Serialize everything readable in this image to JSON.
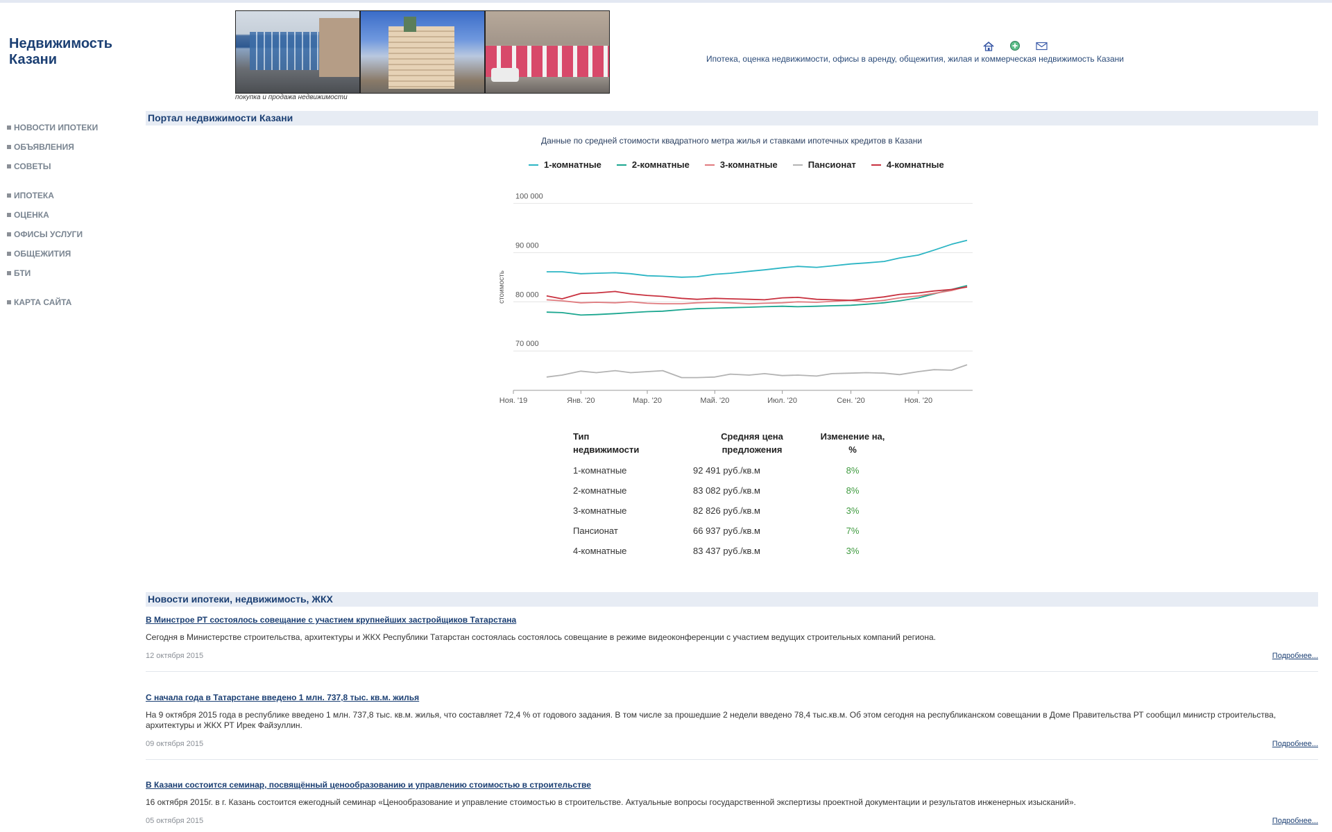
{
  "site": {
    "title": "Недвижимость Казани",
    "photo_caption": "покупка и продажа недвижимости",
    "tagline": "Ипотека, оценка недвижимости, офисы в аренду, общежития, жилая и коммерческая недвижимость Казани",
    "icons": [
      "home-icon",
      "add-icon",
      "mail-icon"
    ]
  },
  "nav": {
    "group1": [
      "НОВОСТИ ИПОТЕКИ",
      "ОБЪЯВЛЕНИЯ",
      "СОВЕТЫ"
    ],
    "group2": [
      "ИПОТЕКА",
      "ОЦЕНКА",
      "ОФИСЫ УСЛУГИ",
      "ОБЩЕЖИТИЯ",
      "БТИ"
    ],
    "group3": [
      "КАРТА САЙТА"
    ]
  },
  "portal": {
    "heading": "Портал недвижимости Казани",
    "chart_title": "Данные по средней стоимости квадратного метра жилья и ставками ипотечных кредитов в Казани"
  },
  "chart_data": {
    "type": "line",
    "ylabel": "стоимость",
    "ylim": [
      62000,
      104000
    ],
    "yticks": [
      70000,
      80000,
      90000,
      100000
    ],
    "ytick_labels": [
      "70 000",
      "80 000",
      "90 000",
      "100 000"
    ],
    "x_range": [
      "2019-11-01",
      "2020-12-20"
    ],
    "xtick_dates": [
      "2019-11-01",
      "2020-01-01",
      "2020-03-01",
      "2020-05-01",
      "2020-07-01",
      "2020-09-01",
      "2020-11-01"
    ],
    "xtick_labels": [
      "Ноя. '19",
      "Янв. '20",
      "Мар. '20",
      "Май. '20",
      "Июл. '20",
      "Сен. '20",
      "Ноя. '20"
    ],
    "grid": true,
    "legend_position": "top",
    "series": [
      {
        "name": "1-комнатные",
        "color": "#2bb5c4",
        "dates": [
          "2019-12-01",
          "2019-12-15",
          "2020-01-01",
          "2020-01-15",
          "2020-02-01",
          "2020-02-15",
          "2020-03-01",
          "2020-03-15",
          "2020-04-01",
          "2020-04-15",
          "2020-05-01",
          "2020-05-15",
          "2020-06-01",
          "2020-06-15",
          "2020-07-01",
          "2020-07-15",
          "2020-08-01",
          "2020-08-15",
          "2020-09-01",
          "2020-09-15",
          "2020-10-01",
          "2020-10-15",
          "2020-11-01",
          "2020-11-15",
          "2020-12-01",
          "2020-12-15"
        ],
        "values": [
          86100,
          86100,
          85700,
          85800,
          85900,
          85700,
          85300,
          85200,
          85000,
          85100,
          85600,
          85800,
          86200,
          86500,
          86900,
          87200,
          87000,
          87300,
          87700,
          87900,
          88200,
          88900,
          89500,
          90500,
          91700,
          92500
        ]
      },
      {
        "name": "2-комнатные",
        "color": "#1aa68f",
        "dates": [
          "2019-12-01",
          "2019-12-15",
          "2020-01-01",
          "2020-01-15",
          "2020-02-01",
          "2020-02-15",
          "2020-03-01",
          "2020-03-15",
          "2020-04-01",
          "2020-04-15",
          "2020-05-01",
          "2020-05-15",
          "2020-06-01",
          "2020-06-15",
          "2020-07-01",
          "2020-07-15",
          "2020-08-01",
          "2020-08-15",
          "2020-09-01",
          "2020-09-15",
          "2020-10-01",
          "2020-10-15",
          "2020-11-01",
          "2020-11-15",
          "2020-12-01",
          "2020-12-15"
        ],
        "values": [
          77900,
          77800,
          77300,
          77400,
          77600,
          77800,
          78000,
          78100,
          78400,
          78600,
          78700,
          78800,
          78900,
          79000,
          79100,
          79000,
          79100,
          79200,
          79300,
          79500,
          79800,
          80200,
          80800,
          81600,
          82500,
          83300
        ]
      },
      {
        "name": "3-комнатные",
        "color": "#e07a7e",
        "dates": [
          "2019-12-01",
          "2019-12-15",
          "2020-01-01",
          "2020-01-15",
          "2020-02-01",
          "2020-02-15",
          "2020-03-01",
          "2020-03-15",
          "2020-04-01",
          "2020-04-15",
          "2020-05-01",
          "2020-05-15",
          "2020-06-01",
          "2020-06-15",
          "2020-07-01",
          "2020-07-15",
          "2020-08-01",
          "2020-08-15",
          "2020-09-01",
          "2020-09-15",
          "2020-10-01",
          "2020-10-15",
          "2020-11-01",
          "2020-11-15",
          "2020-12-01",
          "2020-12-15"
        ],
        "values": [
          80400,
          80200,
          79800,
          79900,
          79800,
          80000,
          79700,
          79600,
          79600,
          79800,
          79900,
          79800,
          79600,
          79700,
          79800,
          80000,
          79900,
          80100,
          80300,
          80000,
          80300,
          80800,
          81200,
          81700,
          82300,
          83100
        ]
      },
      {
        "name": "Пансионат",
        "color": "#b3b3b3",
        "dates": [
          "2019-12-01",
          "2019-12-15",
          "2020-01-01",
          "2020-01-15",
          "2020-02-01",
          "2020-02-15",
          "2020-03-01",
          "2020-03-15",
          "2020-04-01",
          "2020-04-15",
          "2020-05-01",
          "2020-05-15",
          "2020-06-01",
          "2020-06-15",
          "2020-07-01",
          "2020-07-15",
          "2020-08-01",
          "2020-08-15",
          "2020-09-01",
          "2020-09-15",
          "2020-10-01",
          "2020-10-15",
          "2020-11-01",
          "2020-11-15",
          "2020-12-01",
          "2020-12-15"
        ],
        "values": [
          64700,
          65100,
          65900,
          65600,
          66000,
          65600,
          65800,
          66000,
          64600,
          64600,
          64700,
          65300,
          65100,
          65400,
          65000,
          65100,
          64900,
          65400,
          65500,
          65600,
          65500,
          65200,
          65800,
          66200,
          66100,
          67200
        ]
      },
      {
        "name": "4-комнатные",
        "color": "#c8303e",
        "dates": [
          "2019-12-01",
          "2019-12-15",
          "2020-01-01",
          "2020-01-15",
          "2020-02-01",
          "2020-02-15",
          "2020-03-01",
          "2020-03-15",
          "2020-04-01",
          "2020-04-15",
          "2020-05-01",
          "2020-05-15",
          "2020-06-01",
          "2020-06-15",
          "2020-07-01",
          "2020-07-15",
          "2020-08-01",
          "2020-08-15",
          "2020-09-01",
          "2020-09-15",
          "2020-10-01",
          "2020-10-15",
          "2020-11-01",
          "2020-11-15",
          "2020-12-01",
          "2020-12-15"
        ],
        "values": [
          81200,
          80600,
          81700,
          81800,
          82100,
          81600,
          81300,
          81100,
          80700,
          80500,
          80700,
          80600,
          80500,
          80400,
          80800,
          80900,
          80500,
          80400,
          80300,
          80600,
          81000,
          81500,
          81800,
          82200,
          82500,
          83000
        ]
      }
    ]
  },
  "price_table": {
    "headers": [
      "Тип\nнедвижимости",
      "Средняя цена\nпредложения",
      "Изменение на,\n%"
    ],
    "rows": [
      [
        "1-комнатные",
        "92 491 руб./кв.м",
        "8%"
      ],
      [
        "2-комнатные",
        "83 082 руб./кв.м",
        "8%"
      ],
      [
        "3-комнатные",
        "82 826 руб./кв.м",
        "3%"
      ],
      [
        "Пансионат",
        "66 937 руб./кв.м",
        "7%"
      ],
      [
        "4-комнатные",
        "83 437 руб./кв.м",
        "3%"
      ]
    ]
  },
  "news": {
    "heading": "Новости ипотеки, недвижимость, ЖКХ",
    "more_label": "Подробнее...",
    "items": [
      {
        "title": "В Минстрое РТ состоялось совещание с участием крупнейших застройщиков Татарстана",
        "text": "Сегодня в Министерстве строительства, архитектуры и ЖКХ Республики Татарстан состоялась состоялось совещание в режиме видеоконференции с участием ведущих строительных компаний региона.",
        "date": "12 октября 2015"
      },
      {
        "title": "С начала года в Татарстане введено 1 млн. 737,8 тыс. кв.м. жилья",
        "text": "На 9 октября 2015 года в республике введено 1 млн. 737,8 тыс. кв.м. жилья, что составляет 72,4 % от годового задания. В том числе за прошедшие 2 недели введено 78,4 тыс.кв.м. Об этом сегодня на республиканском совещании в Доме Правительства РТ сообщил министр строительства, архитектуры и ЖКХ РТ Ирек Файзуллин.",
        "date": "09 октября 2015"
      },
      {
        "title": "В Казани состоится семинар, посвящённый ценообразованию и управлению стоимостью в строительстве",
        "text": "16 октября 2015г. в г. Казань состоится ежегодный семинар «Ценообразование и управление стоимостью в строительстве. Актуальные вопросы государственной экспертизы проектной документации и результатов инженерных изысканий».",
        "date": "05 октября 2015"
      }
    ]
  }
}
